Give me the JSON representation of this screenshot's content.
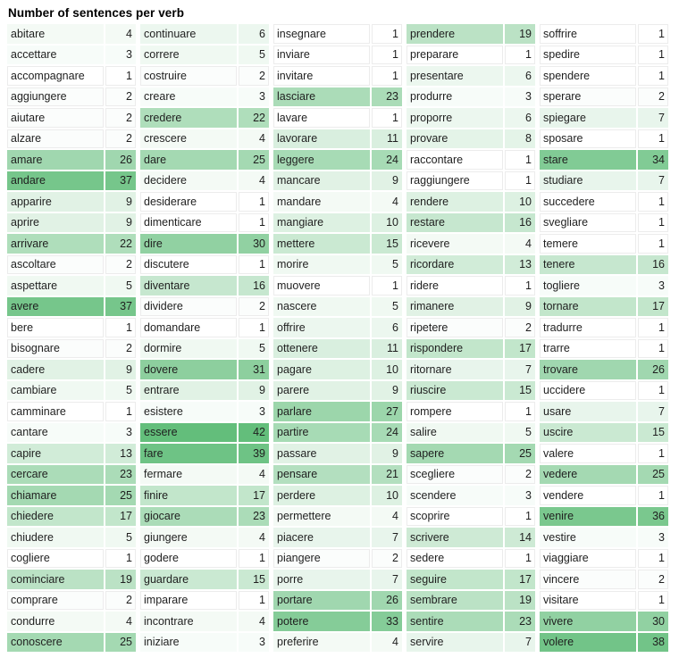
{
  "chart_data": {
    "type": "heatmap",
    "title": "Number of sentences per verb",
    "legend": "none",
    "value_scale": {
      "min": 1,
      "max": 42,
      "min_color": "#FFFFFF",
      "max_color": "#63BE7B"
    },
    "rows_per_column": 30,
    "columns": [
      {
        "cells": [
          {
            "verb": "abitare",
            "n": 4
          },
          {
            "verb": "accettare",
            "n": 3
          },
          {
            "verb": "accompagnare",
            "n": 1
          },
          {
            "verb": "aggiungere",
            "n": 2
          },
          {
            "verb": "aiutare",
            "n": 2
          },
          {
            "verb": "alzare",
            "n": 2
          },
          {
            "verb": "amare",
            "n": 26
          },
          {
            "verb": "andare",
            "n": 37
          },
          {
            "verb": "apparire",
            "n": 9
          },
          {
            "verb": "aprire",
            "n": 9
          },
          {
            "verb": "arrivare",
            "n": 22
          },
          {
            "verb": "ascoltare",
            "n": 2
          },
          {
            "verb": "aspettare",
            "n": 5
          },
          {
            "verb": "avere",
            "n": 37
          },
          {
            "verb": "bere",
            "n": 1
          },
          {
            "verb": "bisognare",
            "n": 2
          },
          {
            "verb": "cadere",
            "n": 9
          },
          {
            "verb": "cambiare",
            "n": 5
          },
          {
            "verb": "camminare",
            "n": 1
          },
          {
            "verb": "cantare",
            "n": 3
          },
          {
            "verb": "capire",
            "n": 13
          },
          {
            "verb": "cercare",
            "n": 23
          },
          {
            "verb": "chiamare",
            "n": 25
          },
          {
            "verb": "chiedere",
            "n": 17
          },
          {
            "verb": "chiudere",
            "n": 5
          },
          {
            "verb": "cogliere",
            "n": 1
          },
          {
            "verb": "cominciare",
            "n": 19
          },
          {
            "verb": "comprare",
            "n": 2
          },
          {
            "verb": "condurre",
            "n": 4
          },
          {
            "verb": "conoscere",
            "n": 25
          }
        ]
      },
      {
        "cells": [
          {
            "verb": "continuare",
            "n": 6
          },
          {
            "verb": "correre",
            "n": 5
          },
          {
            "verb": "costruire",
            "n": 2
          },
          {
            "verb": "creare",
            "n": 3
          },
          {
            "verb": "credere",
            "n": 22
          },
          {
            "verb": "crescere",
            "n": 4
          },
          {
            "verb": "dare",
            "n": 25
          },
          {
            "verb": "decidere",
            "n": 4
          },
          {
            "verb": "desiderare",
            "n": 1
          },
          {
            "verb": "dimenticare",
            "n": 1
          },
          {
            "verb": "dire",
            "n": 30
          },
          {
            "verb": "discutere",
            "n": 1
          },
          {
            "verb": "diventare",
            "n": 16
          },
          {
            "verb": "dividere",
            "n": 2
          },
          {
            "verb": "domandare",
            "n": 1
          },
          {
            "verb": "dormire",
            "n": 5
          },
          {
            "verb": "dovere",
            "n": 31
          },
          {
            "verb": "entrare",
            "n": 9
          },
          {
            "verb": "esistere",
            "n": 3
          },
          {
            "verb": "essere",
            "n": 42
          },
          {
            "verb": "fare",
            "n": 39
          },
          {
            "verb": "fermare",
            "n": 4
          },
          {
            "verb": "finire",
            "n": 17
          },
          {
            "verb": "giocare",
            "n": 23
          },
          {
            "verb": "giungere",
            "n": 4
          },
          {
            "verb": "godere",
            "n": 1
          },
          {
            "verb": "guardare",
            "n": 15
          },
          {
            "verb": "imparare",
            "n": 1
          },
          {
            "verb": "incontrare",
            "n": 4
          },
          {
            "verb": "iniziare",
            "n": 3
          }
        ]
      },
      {
        "cells": [
          {
            "verb": "insegnare",
            "n": 1
          },
          {
            "verb": "inviare",
            "n": 1
          },
          {
            "verb": "invitare",
            "n": 1
          },
          {
            "verb": "lasciare",
            "n": 23
          },
          {
            "verb": "lavare",
            "n": 1
          },
          {
            "verb": "lavorare",
            "n": 11
          },
          {
            "verb": "leggere",
            "n": 24
          },
          {
            "verb": "mancare",
            "n": 9
          },
          {
            "verb": "mandare",
            "n": 4
          },
          {
            "verb": "mangiare",
            "n": 10
          },
          {
            "verb": "mettere",
            "n": 15
          },
          {
            "verb": "morire",
            "n": 5
          },
          {
            "verb": "muovere",
            "n": 1
          },
          {
            "verb": "nascere",
            "n": 5
          },
          {
            "verb": "offrire",
            "n": 6
          },
          {
            "verb": "ottenere",
            "n": 11
          },
          {
            "verb": "pagare",
            "n": 10
          },
          {
            "verb": "parere",
            "n": 9
          },
          {
            "verb": "parlare",
            "n": 27
          },
          {
            "verb": "partire",
            "n": 24
          },
          {
            "verb": "passare",
            "n": 9
          },
          {
            "verb": "pensare",
            "n": 21
          },
          {
            "verb": "perdere",
            "n": 10
          },
          {
            "verb": "permettere",
            "n": 4
          },
          {
            "verb": "piacere",
            "n": 7
          },
          {
            "verb": "piangere",
            "n": 2
          },
          {
            "verb": "porre",
            "n": 7
          },
          {
            "verb": "portare",
            "n": 26
          },
          {
            "verb": "potere",
            "n": 33
          },
          {
            "verb": "preferire",
            "n": 4
          }
        ]
      },
      {
        "cells": [
          {
            "verb": "prendere",
            "n": 19
          },
          {
            "verb": "preparare",
            "n": 1
          },
          {
            "verb": "presentare",
            "n": 6
          },
          {
            "verb": "produrre",
            "n": 3
          },
          {
            "verb": "proporre",
            "n": 6
          },
          {
            "verb": "provare",
            "n": 8
          },
          {
            "verb": "raccontare",
            "n": 1
          },
          {
            "verb": "raggiungere",
            "n": 1
          },
          {
            "verb": "rendere",
            "n": 10
          },
          {
            "verb": "restare",
            "n": 16
          },
          {
            "verb": "ricevere",
            "n": 4
          },
          {
            "verb": "ricordare",
            "n": 13
          },
          {
            "verb": "ridere",
            "n": 1
          },
          {
            "verb": "rimanere",
            "n": 9
          },
          {
            "verb": "ripetere",
            "n": 2
          },
          {
            "verb": "rispondere",
            "n": 17
          },
          {
            "verb": "ritornare",
            "n": 7
          },
          {
            "verb": "riuscire",
            "n": 15
          },
          {
            "verb": "rompere",
            "n": 1
          },
          {
            "verb": "salire",
            "n": 5
          },
          {
            "verb": "sapere",
            "n": 25
          },
          {
            "verb": "scegliere",
            "n": 2
          },
          {
            "verb": "scendere",
            "n": 3
          },
          {
            "verb": "scoprire",
            "n": 1
          },
          {
            "verb": "scrivere",
            "n": 14
          },
          {
            "verb": "sedere",
            "n": 1
          },
          {
            "verb": "seguire",
            "n": 17
          },
          {
            "verb": "sembrare",
            "n": 19
          },
          {
            "verb": "sentire",
            "n": 23
          },
          {
            "verb": "servire",
            "n": 7
          }
        ]
      },
      {
        "cells": [
          {
            "verb": "soffrire",
            "n": 1
          },
          {
            "verb": "spedire",
            "n": 1
          },
          {
            "verb": "spendere",
            "n": 1
          },
          {
            "verb": "sperare",
            "n": 2
          },
          {
            "verb": "spiegare",
            "n": 7
          },
          {
            "verb": "sposare",
            "n": 1
          },
          {
            "verb": "stare",
            "n": 34
          },
          {
            "verb": "studiare",
            "n": 7
          },
          {
            "verb": "succedere",
            "n": 1
          },
          {
            "verb": "svegliare",
            "n": 1
          },
          {
            "verb": "temere",
            "n": 1
          },
          {
            "verb": "tenere",
            "n": 16
          },
          {
            "verb": "togliere",
            "n": 3
          },
          {
            "verb": "tornare",
            "n": 17
          },
          {
            "verb": "tradurre",
            "n": 1
          },
          {
            "verb": "trarre",
            "n": 1
          },
          {
            "verb": "trovare",
            "n": 26
          },
          {
            "verb": "uccidere",
            "n": 1
          },
          {
            "verb": "usare",
            "n": 7
          },
          {
            "verb": "uscire",
            "n": 15
          },
          {
            "verb": "valere",
            "n": 1
          },
          {
            "verb": "vedere",
            "n": 25
          },
          {
            "verb": "vendere",
            "n": 1
          },
          {
            "verb": "venire",
            "n": 36
          },
          {
            "verb": "vestire",
            "n": 3
          },
          {
            "verb": "viaggiare",
            "n": 1
          },
          {
            "verb": "vincere",
            "n": 2
          },
          {
            "verb": "visitare",
            "n": 1
          },
          {
            "verb": "vivere",
            "n": 30
          },
          {
            "verb": "volere",
            "n": 38
          }
        ]
      }
    ]
  }
}
